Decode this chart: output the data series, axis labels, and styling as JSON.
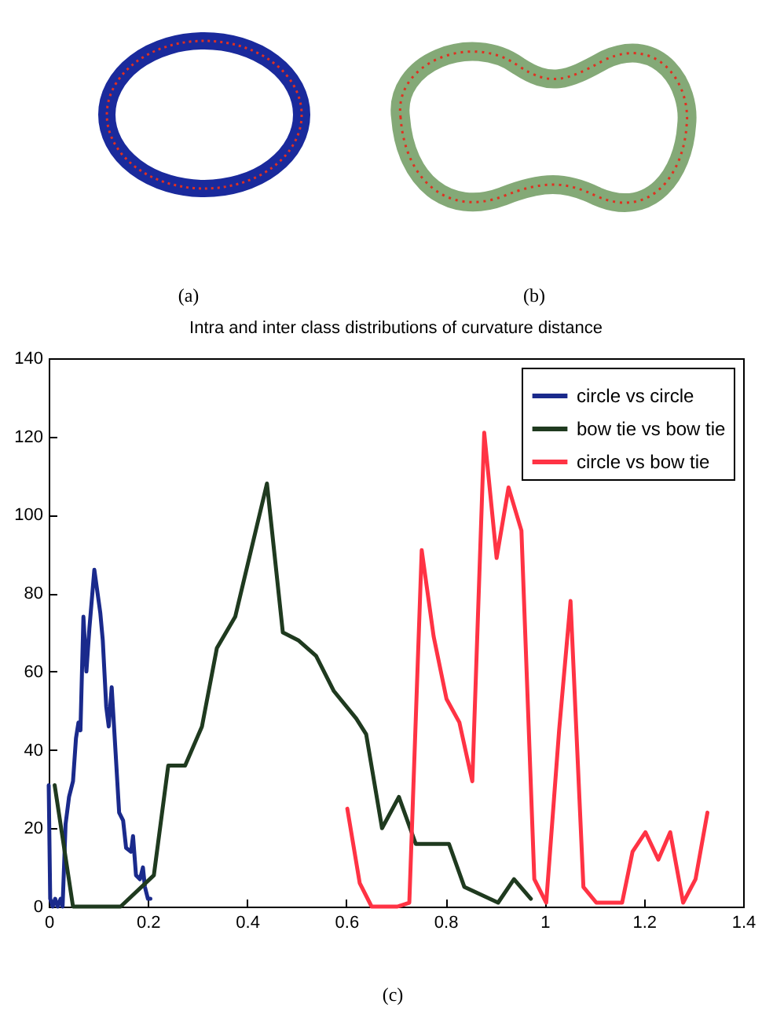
{
  "chart_data": {
    "type": "line",
    "title": "Intra and inter class distributions of curvature distance",
    "annotations": [
      "(a)",
      "(b)",
      "(c)"
    ],
    "xlim": [
      0,
      1.4
    ],
    "xticks": [
      0,
      0.2,
      0.4,
      0.6,
      0.8,
      1,
      1.2,
      1.4
    ],
    "ylim": [
      0,
      140
    ],
    "yticks": [
      0,
      20,
      40,
      60,
      80,
      100,
      120,
      140
    ],
    "grid": false,
    "legend": "top right",
    "marker": "none",
    "line_style": "solid",
    "series": [
      {
        "name": "circle vs circle",
        "color": "#1a2a8c",
        "x": [
          0,
          0.003,
          0.008,
          0.013,
          0.018,
          0.024,
          0.028,
          0.034,
          0.041,
          0.049,
          0.055,
          0.06,
          0.064,
          0.07,
          0.076,
          0.082,
          0.092,
          0.104,
          0.109,
          0.116,
          0.121,
          0.127,
          0.135,
          0.142,
          0.15,
          0.156,
          0.166,
          0.17,
          0.176,
          0.184,
          0.19,
          0.194,
          0.2,
          0.205
        ],
        "values": [
          31,
          2,
          0,
          2,
          0,
          2,
          0,
          21,
          28,
          32,
          43,
          47,
          45,
          74,
          60,
          71,
          86,
          75,
          68,
          51,
          46,
          56,
          39,
          24,
          22,
          15,
          14,
          18,
          8,
          7,
          10,
          5,
          2,
          2
        ]
      },
      {
        "name": "bow tie vs bow tie",
        "color": "#1f3a1f",
        "x": [
          0.012,
          0.049,
          0.145,
          0.212,
          0.241,
          0.275,
          0.309,
          0.339,
          0.376,
          0.44,
          0.472,
          0.503,
          0.539,
          0.575,
          0.62,
          0.64,
          0.672,
          0.706,
          0.74,
          0.807,
          0.838,
          0.906,
          0.938,
          0.972
        ],
        "values": [
          31,
          0,
          0,
          8,
          36,
          36,
          46,
          66,
          74,
          108,
          70,
          68,
          64,
          55,
          48,
          44,
          20,
          28,
          16,
          16,
          5,
          1,
          7,
          2
        ]
      },
      {
        "name": "circle vs bow tie",
        "color": "#ff3344",
        "x": [
          0.602,
          0.627,
          0.651,
          0.703,
          0.727,
          0.752,
          0.776,
          0.802,
          0.828,
          0.854,
          0.878,
          0.903,
          0.927,
          0.953,
          0.979,
          1.003,
          1.029,
          1.052,
          1.078,
          1.104,
          1.156,
          1.177,
          1.203,
          1.229,
          1.253,
          1.279,
          1.304,
          1.328
        ],
        "values": [
          25,
          6,
          0,
          0,
          1,
          91,
          69,
          53,
          47,
          32,
          121,
          89,
          107,
          96,
          7,
          1,
          45,
          78,
          5,
          1,
          1,
          14,
          19,
          12,
          19,
          1,
          7,
          24
        ]
      }
    ]
  }
}
